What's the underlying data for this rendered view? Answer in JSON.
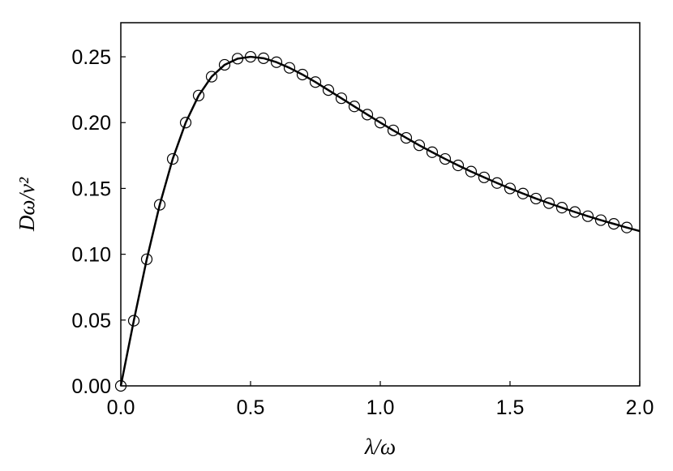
{
  "chart_data": {
    "type": "line",
    "xlabel": "λ/ω",
    "ylabel": "Dω/v²",
    "xlim": [
      0,
      2
    ],
    "ylim": [
      0,
      0.2759
    ],
    "xticks": [
      {
        "value": 0,
        "label": "0.0"
      },
      {
        "value": 0.5,
        "label": "0.5"
      },
      {
        "value": 1,
        "label": "1.0"
      },
      {
        "value": 1.5,
        "label": "1.5"
      },
      {
        "value": 2,
        "label": "2.0"
      }
    ],
    "yticks": [
      {
        "value": 0,
        "label": "0.00"
      },
      {
        "value": 0.05,
        "label": "0.05"
      },
      {
        "value": 0.1,
        "label": "0.10"
      },
      {
        "value": 0.15,
        "label": "0.15"
      },
      {
        "value": 0.2,
        "label": "0.20"
      },
      {
        "value": 0.25,
        "label": "0.25"
      }
    ],
    "series": [
      {
        "style": "markers",
        "color": "#000000",
        "x": [
          0,
          0.05,
          0.1,
          0.15,
          0.2,
          0.25,
          0.3,
          0.35,
          0.4,
          0.45,
          0.5,
          0.55,
          0.6,
          0.65,
          0.7,
          0.75,
          0.8,
          0.85,
          0.9,
          0.95,
          1.0,
          1.05,
          1.1,
          1.15,
          1.2,
          1.25,
          1.3,
          1.35,
          1.4,
          1.45,
          1.5,
          1.55,
          1.6,
          1.65,
          1.7,
          1.75,
          1.8,
          1.85,
          1.9,
          1.95
        ],
        "values": [
          0,
          0.0495,
          0.0962,
          0.1376,
          0.1724,
          0.2,
          0.2206,
          0.2349,
          0.2439,
          0.2486,
          0.25,
          0.2489,
          0.2459,
          0.2416,
          0.2365,
          0.2308,
          0.2247,
          0.2185,
          0.2123,
          0.2061,
          0.2,
          0.1941,
          0.1884,
          0.1828,
          0.1775,
          0.1724,
          0.1675,
          0.1628,
          0.1584,
          0.1541,
          0.15,
          0.1461,
          0.1423,
          0.1388,
          0.1354,
          0.1321,
          0.1289,
          0.1259,
          0.1231,
          0.1203
        ]
      },
      {
        "style": "line",
        "color": "#000000",
        "x": [
          0,
          0.05,
          0.1,
          0.15,
          0.2,
          0.25,
          0.3,
          0.35,
          0.4,
          0.45,
          0.5,
          0.55,
          0.6,
          0.65,
          0.7,
          0.75,
          0.8,
          0.85,
          0.9,
          0.95,
          1.0,
          1.05,
          1.1,
          1.15,
          1.2,
          1.25,
          1.3,
          1.35,
          1.4,
          1.45,
          1.5,
          1.55,
          1.6,
          1.65,
          1.7,
          1.75,
          1.8,
          1.85,
          1.9,
          1.95,
          2.0
        ],
        "values": [
          0,
          0.0495,
          0.0962,
          0.1376,
          0.1724,
          0.2,
          0.2206,
          0.2349,
          0.2439,
          0.2486,
          0.25,
          0.2489,
          0.2459,
          0.2416,
          0.2365,
          0.2308,
          0.2247,
          0.2185,
          0.2123,
          0.2061,
          0.2,
          0.1941,
          0.1884,
          0.1828,
          0.1775,
          0.1724,
          0.1675,
          0.1628,
          0.1584,
          0.1541,
          0.15,
          0.1461,
          0.1423,
          0.1388,
          0.1354,
          0.1321,
          0.1289,
          0.1259,
          0.1231,
          0.1203,
          0.1176
        ]
      }
    ]
  }
}
